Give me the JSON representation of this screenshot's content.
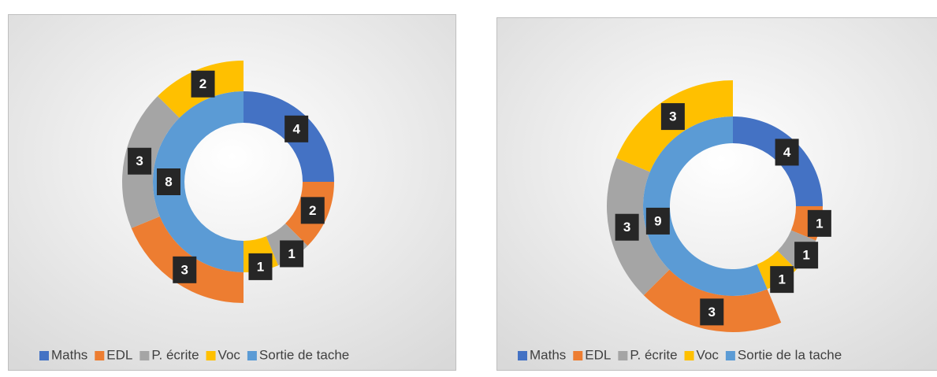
{
  "chart_data": [
    {
      "type": "doughnut",
      "categories": [
        "Maths",
        "EDL",
        "P. écrite",
        "Voc",
        "Sortie de tache"
      ],
      "colors": [
        "#4472c4",
        "#ed7d31",
        "#a5a5a5",
        "#ffc000",
        "#5b9bd5"
      ],
      "values": [
        4,
        2,
        1,
        1,
        8
      ],
      "outer_categories": [
        "EDL",
        "P. écrite",
        "Voc"
      ],
      "outer_values": [
        3,
        3,
        2
      ]
    },
    {
      "type": "doughnut",
      "categories": [
        "Maths",
        "EDL",
        "P. écrite",
        "Voc",
        "Sortie de la tache"
      ],
      "colors": [
        "#4472c4",
        "#ed7d31",
        "#a5a5a5",
        "#ffc000",
        "#5b9bd5"
      ],
      "values": [
        4,
        1,
        1,
        1,
        9
      ],
      "outer_categories": [
        "EDL",
        "P. écrite",
        "Voc"
      ],
      "outer_values": [
        3,
        3,
        3
      ]
    }
  ]
}
